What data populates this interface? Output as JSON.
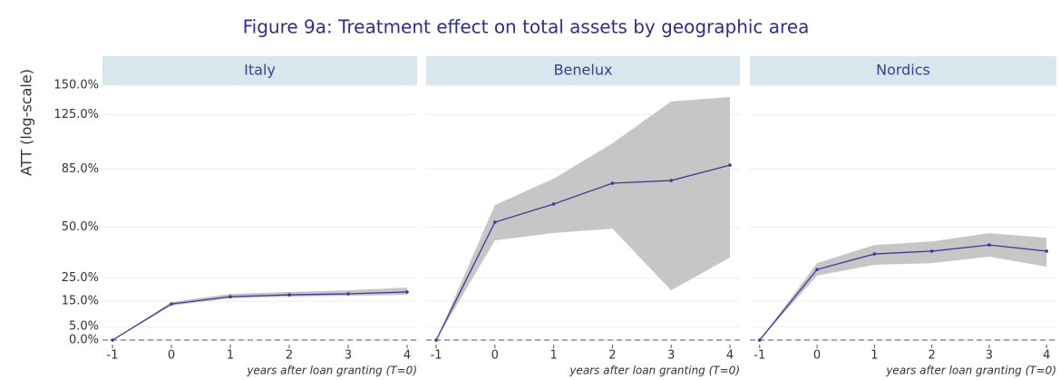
{
  "title": "Figure 9a: Treatment effect on total assets by geographic area",
  "y_label": "ATT (log-scale)",
  "chart_data": [
    {
      "type": "line",
      "title": "Italy",
      "x_label": "years after loan granting (T=0)",
      "x": [
        -1,
        0,
        1,
        2,
        3,
        4
      ],
      "values": [
        0,
        13.9,
        16.9,
        17.7,
        18.1,
        18.9
      ],
      "lower": [
        0,
        13.2,
        16.2,
        16.9,
        17.3,
        17.7
      ],
      "upper": [
        0,
        14.7,
        18.1,
        18.9,
        19.6,
        20.8
      ],
      "color": "#3b3b9e",
      "band_color": "#c6c6c6",
      "xlim": [
        -1.17,
        4.17
      ],
      "xticks": [
        -1,
        0,
        1,
        2,
        3,
        4
      ],
      "ylim": [
        -1.6,
        150
      ],
      "log_scale": true,
      "grid": true,
      "yticks": [
        {
          "value": 0,
          "label": "0.0%"
        },
        {
          "value": 5,
          "label": "5.0%"
        },
        {
          "value": 15,
          "label": "15.0%"
        },
        {
          "value": 25,
          "label": "25.0%"
        },
        {
          "value": 50,
          "label": "50.0%"
        },
        {
          "value": 85,
          "label": "85.0%"
        },
        {
          "value": 125,
          "label": "125.0%"
        },
        {
          "value": 150,
          "label": "150.0%"
        }
      ]
    },
    {
      "type": "line",
      "title": "Benelux",
      "x_label": "years after loan granting (T=0)",
      "x": [
        -1,
        0,
        1,
        2,
        3,
        4
      ],
      "values": [
        0,
        52.8,
        63.1,
        75.8,
        77.5,
        87.6
      ],
      "lower": [
        0,
        43.1,
        47,
        49.3,
        19.6,
        34.6
      ],
      "upper": [
        0,
        62.6,
        78.7,
        102.9,
        135.8,
        139.6
      ],
      "color": "#3b3b9e",
      "band_color": "#c6c6c6",
      "xlim": [
        -1.17,
        4.17
      ],
      "xticks": [
        -1,
        0,
        1,
        2,
        3,
        4
      ],
      "ylim": [
        -1.6,
        150
      ],
      "log_scale": true,
      "grid": true
    },
    {
      "type": "line",
      "title": "Nordics",
      "x_label": "years after loan granting (T=0)",
      "x": [
        -1,
        0,
        1,
        2,
        3,
        4
      ],
      "values": [
        0,
        28.9,
        36.3,
        37.7,
        40.8,
        37.7
      ],
      "lower": [
        0,
        26.1,
        31.1,
        31.9,
        35,
        30.2
      ],
      "upper": [
        0,
        31.9,
        40.8,
        42.6,
        46.9,
        44.5
      ],
      "color": "#3b3b9e",
      "band_color": "#c6c6c6",
      "xlim": [
        -1.17,
        4.17
      ],
      "xticks": [
        -1,
        0,
        1,
        2,
        3,
        4
      ],
      "ylim": [
        -1.6,
        150
      ],
      "log_scale": true,
      "grid": true
    }
  ]
}
